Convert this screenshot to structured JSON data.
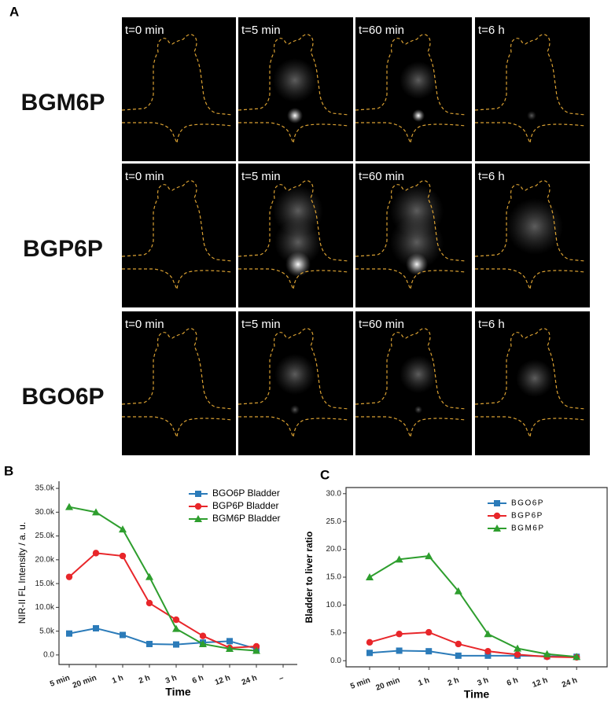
{
  "panel_a": {
    "label": "A",
    "rows": [
      "BGM6P",
      "BGP6P",
      "BGO6P"
    ],
    "times": [
      [
        "t=0 min",
        "t=5 min",
        "t=60 min",
        "t=6 h"
      ],
      [
        "t=0 min",
        "t=5 min",
        "t=60 min",
        "t=6 h"
      ],
      [
        "t=0 min",
        "t=5 min",
        "t=60 min",
        "t=6 h"
      ]
    ]
  },
  "chart_data": [
    {
      "type": "line",
      "panel": "B",
      "xlabel": "Time",
      "ylabel": "NIR-II FL Intensity / a. u.",
      "categories": [
        "5 min",
        "20 min",
        "1 h",
        "2 h",
        "3 h",
        "6 h",
        "12 h",
        "24 h",
        "–"
      ],
      "ylim": [
        -2000,
        36500
      ],
      "yticks": [
        {
          "value": 0,
          "label": "0.0"
        },
        {
          "value": 5000,
          "label": "5.0k"
        },
        {
          "value": 10000,
          "label": "10.0k"
        },
        {
          "value": 15000,
          "label": "15.0k"
        },
        {
          "value": 20000,
          "label": "20.0k"
        },
        {
          "value": 25000,
          "label": "25.0k"
        },
        {
          "value": 30000,
          "label": "30.0k"
        },
        {
          "value": 35000,
          "label": "35.0k"
        }
      ],
      "legend": "upper right",
      "series": [
        {
          "name": "BGO6P Bladder",
          "color": "#2b7bb9",
          "marker": "square",
          "values": [
            4500,
            5600,
            4200,
            2300,
            2200,
            2600,
            2900,
            1300,
            null
          ]
        },
        {
          "name": "BGP6P Bladder",
          "color": "#e8262a",
          "marker": "circle",
          "values": [
            16400,
            21400,
            20800,
            10900,
            7400,
            4000,
            1500,
            1800,
            null
          ]
        },
        {
          "name": "BGM6P Bladder",
          "color": "#2e9e2e",
          "marker": "triangle",
          "values": [
            31100,
            30000,
            26400,
            16400,
            5500,
            2300,
            1300,
            900,
            null
          ]
        }
      ]
    },
    {
      "type": "line",
      "panel": "C",
      "xlabel": "Time",
      "ylabel": "Bladder to liver ratio",
      "categories": [
        "5 min",
        "20 min",
        "1 h",
        "2 h",
        "3 h",
        "6 h",
        "12 h",
        "24 h"
      ],
      "ylim": [
        -1.1,
        31.1
      ],
      "yticks": [
        {
          "value": 0,
          "label": "0.0"
        },
        {
          "value": 5,
          "label": "5.0"
        },
        {
          "value": 10,
          "label": "10.0"
        },
        {
          "value": 15,
          "label": "15.0"
        },
        {
          "value": 20,
          "label": "20.0"
        },
        {
          "value": 25,
          "label": "25.0"
        },
        {
          "value": 30,
          "label": "30.0"
        }
      ],
      "legend": "upper right",
      "series": [
        {
          "name": "BGO6P",
          "color": "#2b7bb9",
          "marker": "square",
          "values": [
            1.4,
            1.8,
            1.7,
            0.9,
            0.9,
            0.9,
            0.8,
            0.7
          ]
        },
        {
          "name": "BGP6P",
          "color": "#e8262a",
          "marker": "circle",
          "values": [
            3.3,
            4.8,
            5.1,
            3.0,
            1.7,
            1.1,
            0.7,
            0.6
          ]
        },
        {
          "name": "BGM6P",
          "color": "#2e9e2e",
          "marker": "triangle",
          "values": [
            15.0,
            18.2,
            18.8,
            12.5,
            4.8,
            2.2,
            1.2,
            0.7
          ]
        }
      ]
    }
  ]
}
